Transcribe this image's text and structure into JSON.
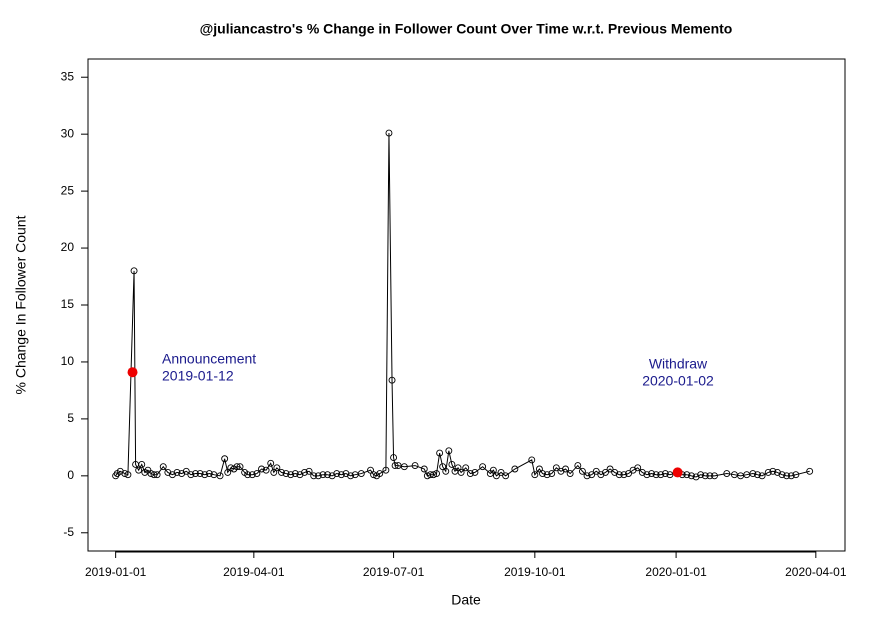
{
  "chart_data": {
    "type": "line",
    "title": "@juliancastro's % Change in Follower Count Over Time w.r.t. Previous Memento",
    "x_label": "Date",
    "y_label": "% Change In Follower Count",
    "xlim": [
      "2018-12-14",
      "2020-04-20"
    ],
    "xticks": [
      "2019-01-01",
      "2019-04-01",
      "2019-07-01",
      "2019-10-01",
      "2020-01-01",
      "2020-04-01"
    ],
    "ylim": [
      -6.6,
      36.6
    ],
    "yticks": [
      -5,
      0,
      5,
      10,
      15,
      20,
      25,
      30,
      35
    ],
    "color": "#000000",
    "x": [
      "2019-01-01",
      "2019-01-02",
      "2019-01-04",
      "2019-01-07",
      "2019-01-09",
      "2019-01-13",
      "2019-01-14",
      "2019-01-16",
      "2019-01-18",
      "2019-01-20",
      "2019-01-22",
      "2019-01-24",
      "2019-01-26",
      "2019-01-28",
      "2019-02-01",
      "2019-02-04",
      "2019-02-07",
      "2019-02-10",
      "2019-02-13",
      "2019-02-16",
      "2019-02-19",
      "2019-02-22",
      "2019-02-25",
      "2019-02-28",
      "2019-03-03",
      "2019-03-06",
      "2019-03-10",
      "2019-03-13",
      "2019-03-15",
      "2019-03-17",
      "2019-03-19",
      "2019-03-21",
      "2019-03-23",
      "2019-03-26",
      "2019-03-28",
      "2019-03-31",
      "2019-04-03",
      "2019-04-06",
      "2019-04-09",
      "2019-04-12",
      "2019-04-14",
      "2019-04-16",
      "2019-04-19",
      "2019-04-22",
      "2019-04-25",
      "2019-04-28",
      "2019-05-01",
      "2019-05-04",
      "2019-05-07",
      "2019-05-10",
      "2019-05-13",
      "2019-05-16",
      "2019-05-19",
      "2019-05-22",
      "2019-05-25",
      "2019-05-28",
      "2019-05-31",
      "2019-06-03",
      "2019-06-06",
      "2019-06-10",
      "2019-06-16",
      "2019-06-18",
      "2019-06-20",
      "2019-06-22",
      "2019-06-26",
      "2019-06-28",
      "2019-06-30",
      "2019-07-01",
      "2019-07-02",
      "2019-07-04",
      "2019-07-08",
      "2019-07-15",
      "2019-07-21",
      "2019-07-23",
      "2019-07-25",
      "2019-07-27",
      "2019-07-29",
      "2019-07-31",
      "2019-08-02",
      "2019-08-04",
      "2019-08-06",
      "2019-08-08",
      "2019-08-10",
      "2019-08-12",
      "2019-08-14",
      "2019-08-17",
      "2019-08-20",
      "2019-08-23",
      "2019-08-28",
      "2019-09-02",
      "2019-09-04",
      "2019-09-06",
      "2019-09-09",
      "2019-09-12",
      "2019-09-18",
      "2019-09-29",
      "2019-10-01",
      "2019-10-04",
      "2019-10-06",
      "2019-10-09",
      "2019-10-12",
      "2019-10-15",
      "2019-10-18",
      "2019-10-21",
      "2019-10-24",
      "2019-10-29",
      "2019-11-01",
      "2019-11-04",
      "2019-11-07",
      "2019-11-10",
      "2019-11-13",
      "2019-11-16",
      "2019-11-19",
      "2019-11-22",
      "2019-11-25",
      "2019-11-28",
      "2019-12-01",
      "2019-12-04",
      "2019-12-07",
      "2019-12-10",
      "2019-12-13",
      "2019-12-16",
      "2019-12-19",
      "2019-12-22",
      "2019-12-25",
      "2019-12-28",
      "2020-01-02",
      "2020-01-05",
      "2020-01-08",
      "2020-01-11",
      "2020-01-14",
      "2020-01-17",
      "2020-01-20",
      "2020-01-23",
      "2020-01-26",
      "2020-02-03",
      "2020-02-08",
      "2020-02-12",
      "2020-02-16",
      "2020-02-20",
      "2020-02-23",
      "2020-02-26",
      "2020-03-01",
      "2020-03-04",
      "2020-03-07",
      "2020-03-10",
      "2020-03-13",
      "2020-03-16",
      "2020-03-19",
      "2020-03-28"
    ],
    "values": [
      0.0,
      0.2,
      0.4,
      0.2,
      0.1,
      18.0,
      1.0,
      0.5,
      1.0,
      0.3,
      0.5,
      0.2,
      0.1,
      0.1,
      0.8,
      0.3,
      0.1,
      0.3,
      0.2,
      0.4,
      0.1,
      0.2,
      0.2,
      0.1,
      0.2,
      0.1,
      0.0,
      1.5,
      0.3,
      0.7,
      0.6,
      0.8,
      0.8,
      0.3,
      0.1,
      0.1,
      0.2,
      0.6,
      0.5,
      1.1,
      0.3,
      0.7,
      0.3,
      0.2,
      0.1,
      0.2,
      0.1,
      0.3,
      0.4,
      0.0,
      0.0,
      0.1,
      0.1,
      0.0,
      0.2,
      0.1,
      0.2,
      0.0,
      0.1,
      0.2,
      0.5,
      0.1,
      0.0,
      0.2,
      0.5,
      30.1,
      8.4,
      1.6,
      0.9,
      0.9,
      0.8,
      0.9,
      0.6,
      0.0,
      0.1,
      0.1,
      0.2,
      2.0,
      0.8,
      0.4,
      2.2,
      1.0,
      0.4,
      0.7,
      0.3,
      0.7,
      0.2,
      0.3,
      0.8,
      0.2,
      0.5,
      0.0,
      0.3,
      0.0,
      0.6,
      1.4,
      0.1,
      0.6,
      0.2,
      0.1,
      0.2,
      0.7,
      0.4,
      0.6,
      0.2,
      0.9,
      0.4,
      0.0,
      0.1,
      0.4,
      0.1,
      0.3,
      0.6,
      0.3,
      0.1,
      0.1,
      0.2,
      0.5,
      0.7,
      0.3,
      0.1,
      0.2,
      0.1,
      0.1,
      0.2,
      0.1,
      0.3,
      0.1,
      0.1,
      0.0,
      -0.1,
      0.1,
      0.0,
      0.0,
      0.0,
      0.2,
      0.1,
      0.0,
      0.1,
      0.2,
      0.1,
      0.0,
      0.3,
      0.4,
      0.3,
      0.1,
      0.0,
      0.0,
      0.1,
      0.4
    ],
    "highlights": {
      "color": "#ee0000",
      "x": [
        "2019-01-12",
        "2020-01-02"
      ],
      "values": [
        9.1,
        0.3
      ]
    },
    "annotations": [
      {
        "color": "#1a1a8c",
        "lines": [
          "Announcement",
          "2019-01-12"
        ]
      },
      {
        "color": "#1a1a8c",
        "lines": [
          "Withdraw",
          "2020-01-02"
        ]
      }
    ]
  }
}
